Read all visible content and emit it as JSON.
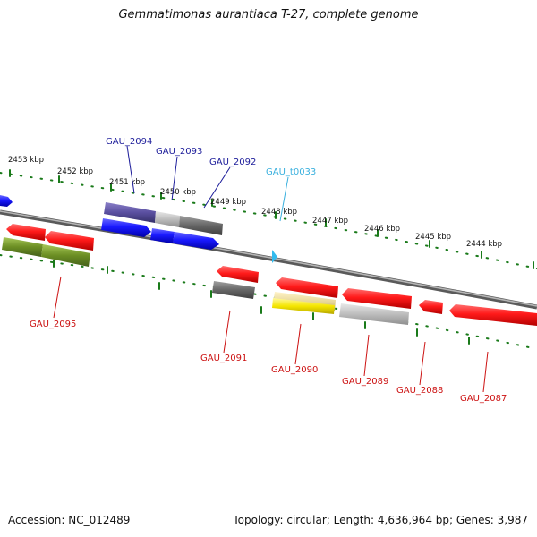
{
  "title": "Gemmatimonas aurantiaca T-27, complete genome",
  "accession": "Accession: NC_012489",
  "topology": "Topology: circular; Length: 4,636,964 bp; Genes: 3,987",
  "kbp_labels": [
    "2453 kbp",
    "2452 kbp",
    "2451 kbp",
    "2450 kbp",
    "2449 kbp",
    "2448 kbp",
    "2447 kbp",
    "2446 kbp",
    "2445 kbp",
    "2444 kbp"
  ],
  "gene_labels": {
    "gau_2094": "GAU_2094",
    "gau_2093": "GAU_2093",
    "gau_2092": "GAU_2092",
    "gau_t0033": "GAU_t0033",
    "gau_2095": "GAU_2095",
    "gau_2091": "GAU_2091",
    "gau_2090": "GAU_2090",
    "gau_2089": "GAU_2089",
    "gau_2088": "GAU_2088",
    "gau_2087": "GAU_2087"
  },
  "colors": {
    "cds_forward": "#1a1aff",
    "cds_reverse": "#ff1a1a",
    "trna": "#33bbee",
    "similarity_dark": "#5a4fa0",
    "similarity_gray": "#999999",
    "olive": "#6b8e23",
    "yellow": "#f5e600",
    "tick_green": "#1a7a1a",
    "backbone": "#888888"
  }
}
